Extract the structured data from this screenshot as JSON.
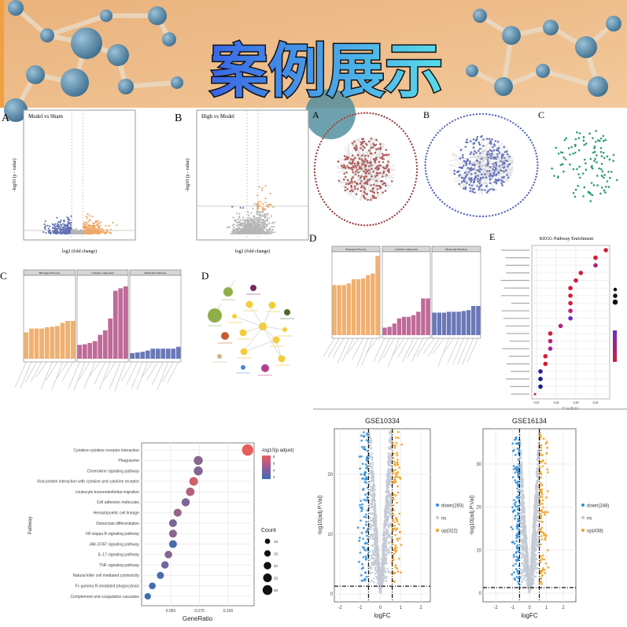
{
  "banner": {
    "title": "案例展示",
    "bg_color": "#eebb88",
    "molecule_color": "#5b8caa"
  },
  "panels_top": {
    "volcano_a": {
      "letter": "A",
      "title": "Model vs Sham",
      "xlabel": "log2 (fold change)",
      "ylabel": "-log10 (p - value)",
      "down_color": "#6272b5",
      "up_color": "#eda765",
      "ns_color": "#b5b5b5"
    },
    "volcano_b": {
      "letter": "B",
      "title": "High vs Model",
      "xlabel": "log2 (fold change)",
      "ylabel": "-log10 (p - value)"
    },
    "networks": [
      {
        "letter": "A",
        "color": "#b0605e",
        "ring_color": "#a04444"
      },
      {
        "letter": "B",
        "color": "#6a78c0",
        "ring_color": "#5566bb"
      },
      {
        "letter": "C",
        "color": "#2e9a7c",
        "ring_color": "#2e9a7c"
      }
    ]
  },
  "go_bar_c": {
    "letter": "C",
    "facets": [
      "Biological Process",
      "Cellular Component",
      "Molecular Function"
    ],
    "colors": [
      "#f0b070",
      "#bf6a98",
      "#6a78b8"
    ],
    "values": [
      [
        2.1,
        2.4,
        2.4,
        2.4,
        2.5,
        2.55,
        2.6,
        2.85,
        3.0,
        3.0
      ],
      [
        1.1,
        1.15,
        1.25,
        1.4,
        1.9,
        2.25,
        3.2,
        5.4,
        5.6,
        5.75
      ],
      [
        0.45,
        0.5,
        0.55,
        0.65,
        0.8,
        0.8,
        0.8,
        0.8,
        0.8,
        0.95
      ]
    ]
  },
  "go_network_d": {
    "letter": "D"
  },
  "go_bar_d": {
    "letter": "D",
    "facets": [
      "Biological Process",
      "Cellular Component",
      "Molecular Function"
    ],
    "values": [
      [
        6.0,
        6.0,
        6.0,
        6.2,
        6.7,
        6.7,
        6.8,
        7.2,
        7.4,
        9.5
      ],
      [
        0.9,
        1.0,
        1.4,
        2.0,
        2.2,
        2.2,
        2.4,
        2.8,
        4.4,
        4.4
      ],
      [
        2.7,
        2.7,
        2.7,
        2.8,
        2.8,
        2.8,
        2.9,
        3.0,
        3.5,
        3.5
      ]
    ]
  },
  "kegg_e": {
    "letter": "E",
    "title": "KEGG Pathway Enrichment",
    "xlabel": "GeneRatio",
    "xticks": [
      "0.12",
      "0.16",
      "0.20",
      "0.24"
    ],
    "gene_ratio": [
      0.261,
      0.24,
      0.24,
      0.21,
      0.2,
      0.189,
      0.189,
      0.189,
      0.189,
      0.189,
      0.169,
      0.148,
      0.148,
      0.148,
      0.138,
      0.138,
      0.128,
      0.128,
      0.128,
      0.117
    ],
    "colors": [
      "#d01e3c",
      "#d01e3c",
      "#b02080",
      "#d01e3c",
      "#d01e3c",
      "#d01e3c",
      "#d01e3c",
      "#d01e3c",
      "#c0207a",
      "#6a2ec0",
      "#b0207a",
      "#d01e3c",
      "#c0207a",
      "#a02a9a",
      "#d01e3c",
      "#d01e3c",
      "#3020a0",
      "#1a1a8a",
      "#1a1a8a",
      "#d01e3c"
    ]
  },
  "dotplot": {
    "xlabel": "GeneRatio",
    "ylabel": "Pathway",
    "xticks": [
      "0.050",
      "0.075",
      "0.100"
    ],
    "color_legend_title": "-log10(p.adjust)",
    "color_legend_ticks": [
      "8",
      "6",
      "4",
      "2"
    ],
    "size_legend_title": "Count",
    "size_legend_ticks": [
      "10",
      "15",
      "20",
      "25",
      "30"
    ],
    "low_color": "#3b6cb5",
    "high_color": "#ec5e5a",
    "pathways": [
      {
        "name": "Cytokine-cytokine receptor interaction",
        "gene_ratio": 0.117,
        "neg_log10_padj": 7.8,
        "count": 30
      },
      {
        "name": "Phagosome",
        "gene_ratio": 0.074,
        "neg_log10_padj": 4.6,
        "count": 19
      },
      {
        "name": "Chemokine signaling pathway",
        "gene_ratio": 0.074,
        "neg_log10_padj": 4.4,
        "count": 19
      },
      {
        "name": "Viral protein interaction with cytokine and cytokine receptor",
        "gene_ratio": 0.07,
        "neg_log10_padj": 7.0,
        "count": 18
      },
      {
        "name": "Leukocyte transendothelial migration",
        "gene_ratio": 0.067,
        "neg_log10_padj": 6.0,
        "count": 17
      },
      {
        "name": "Cell adhesion molecules",
        "gene_ratio": 0.063,
        "neg_log10_padj": 4.2,
        "count": 16
      },
      {
        "name": "Hematopoietic cell lineage",
        "gene_ratio": 0.056,
        "neg_log10_padj": 5.2,
        "count": 15
      },
      {
        "name": "Osteoclast differentiation",
        "gene_ratio": 0.052,
        "neg_log10_padj": 4.0,
        "count": 14
      },
      {
        "name": "NF-kappa B signaling pathway",
        "gene_ratio": 0.052,
        "neg_log10_padj": 4.6,
        "count": 14
      },
      {
        "name": "JAK-STAT signaling pathway",
        "gene_ratio": 0.052,
        "neg_log10_padj": 2.5,
        "count": 14
      },
      {
        "name": "IL-17 signaling pathway",
        "gene_ratio": 0.048,
        "neg_log10_padj": 4.4,
        "count": 13
      },
      {
        "name": "TNF signaling pathway",
        "gene_ratio": 0.045,
        "neg_log10_padj": 3.6,
        "count": 12
      },
      {
        "name": "Natural killer cell mediated cytotoxicity",
        "gene_ratio": 0.041,
        "neg_log10_padj": 2.5,
        "count": 11
      },
      {
        "name": "Fc gamma R-mediated phagocytosis",
        "gene_ratio": 0.034,
        "neg_log10_padj": 2.2,
        "count": 9
      },
      {
        "name": "Complement and coagulation cascades",
        "gene_ratio": 0.03,
        "neg_log10_padj": 2.0,
        "count": 8
      }
    ]
  },
  "volcanoes_bottom": [
    {
      "title": "GSE10334",
      "xlabel": "logFC",
      "ylabel": "-log10(adj.P.Val)",
      "xticks": [
        "-2",
        "-1",
        "0",
        "1",
        "2"
      ],
      "yticks": [
        "0",
        "10",
        "20"
      ],
      "ymax": 33,
      "legend": [
        "down(283)",
        "ns",
        "up(322)"
      ],
      "logfc_cutoff": 0.585,
      "p_cutoff_log": 1.3
    },
    {
      "title": "GSE16134",
      "xlabel": "logFC",
      "ylabel": "-log10(adj.P.Val)",
      "xticks": [
        "-2",
        "-1",
        "0",
        "1",
        "2"
      ],
      "yticks": [
        "0",
        "10",
        "20",
        "30"
      ],
      "ymax": 38,
      "legend": [
        "down(248)",
        "ns",
        "up(438)"
      ],
      "logfc_cutoff": 0.585,
      "p_cutoff_log": 1.3
    }
  ],
  "volcano_colors": {
    "down": "#2f8fd8",
    "ns": "#c4cad4",
    "up": "#f0a020"
  }
}
